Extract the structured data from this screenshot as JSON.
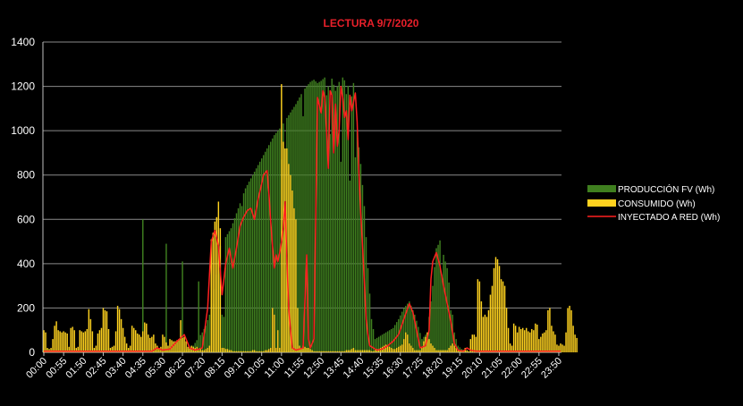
{
  "chart_data": {
    "type": "bar",
    "title": "LECTURA 9/7/2020",
    "xlabel": "",
    "ylabel": "",
    "ylim": [
      0,
      1400
    ],
    "yticks": [
      0,
      200,
      400,
      600,
      800,
      1000,
      1200,
      1400
    ],
    "grid": true,
    "legend_position": "right",
    "colors": {
      "background": "#000000",
      "title": "#e8202a",
      "grid": "#8a8a8a",
      "produccion": "#3f7f1f",
      "consumido": "#ffd21f",
      "inyectado": "#ff2020"
    },
    "interval_minutes": 5,
    "x_tick_labels": [
      "00:00",
      "00:55",
      "01:50",
      "02:45",
      "03:40",
      "04:35",
      "05:30",
      "06:25",
      "07:20",
      "08:15",
      "09:10",
      "10:05",
      "11:00",
      "11:55",
      "12:50",
      "13:45",
      "14:40",
      "15:35",
      "16:30",
      "17:25",
      "18:20",
      "19:15",
      "20:10",
      "21:05",
      "22:00",
      "22:55",
      "23:50"
    ],
    "series": [
      {
        "name": "PRODUCCIÓN FV (Wh)",
        "kind": "bar",
        "anchors": [
          [
            0,
            0
          ],
          [
            60,
            0
          ],
          [
            66,
            2
          ],
          [
            70,
            4
          ],
          [
            78,
            10
          ],
          [
            80,
            15
          ],
          [
            83,
            30
          ],
          [
            85,
            55
          ],
          [
            88,
            90
          ],
          [
            90,
            120
          ],
          [
            94,
            220
          ],
          [
            98,
            480
          ],
          [
            101,
            520
          ],
          [
            104,
            560
          ],
          [
            108,
            650
          ],
          [
            112,
            740
          ],
          [
            116,
            800
          ],
          [
            120,
            860
          ],
          [
            124,
            920
          ],
          [
            128,
            980
          ],
          [
            132,
            1020
          ],
          [
            136,
            1070
          ],
          [
            140,
            1120
          ],
          [
            142,
            1150
          ],
          [
            144,
            1180
          ],
          [
            146,
            1200
          ],
          [
            148,
            1220
          ],
          [
            150,
            1230
          ],
          [
            152,
            1215
          ],
          [
            154,
            1225
          ],
          [
            156,
            1240
          ],
          [
            158,
            1200
          ],
          [
            160,
            1235
          ],
          [
            162,
            1180
          ],
          [
            164,
            1220
          ],
          [
            166,
            1240
          ],
          [
            168,
            1215
          ],
          [
            170,
            1190
          ],
          [
            172,
            1120
          ],
          [
            174,
            1000
          ],
          [
            176,
            850
          ],
          [
            178,
            660
          ],
          [
            180,
            380
          ],
          [
            182,
            150
          ],
          [
            184,
            60
          ],
          [
            186,
            70
          ],
          [
            188,
            80
          ],
          [
            190,
            90
          ],
          [
            194,
            110
          ],
          [
            197,
            150
          ],
          [
            200,
            200
          ],
          [
            203,
            230
          ],
          [
            206,
            170
          ],
          [
            210,
            60
          ],
          [
            213,
            90
          ],
          [
            216,
            300
          ],
          [
            218,
            470
          ],
          [
            220,
            500
          ],
          [
            222,
            440
          ],
          [
            224,
            380
          ],
          [
            226,
            250
          ],
          [
            228,
            90
          ],
          [
            230,
            30
          ],
          [
            232,
            15
          ],
          [
            235,
            5
          ],
          [
            240,
            2
          ],
          [
            245,
            0
          ],
          [
            287,
            0
          ]
        ],
        "spikes": [
          [
            55,
            600
          ],
          [
            68,
            490
          ],
          [
            77,
            410
          ],
          [
            86,
            320
          ],
          [
            99,
            170
          ],
          [
            100,
            160
          ],
          [
            110,
            660
          ],
          [
            132,
            870
          ],
          [
            134,
            920
          ],
          [
            144,
            1065
          ],
          [
            157,
            1160
          ],
          [
            159,
            985
          ],
          [
            165,
            860
          ],
          [
            168,
            1165
          ],
          [
            170,
            775
          ],
          [
            172,
            1215
          ],
          [
            173,
            880
          ],
          [
            220,
            505
          ],
          [
            221,
            350
          ],
          [
            226,
            190
          ]
        ]
      },
      {
        "name": "CONSUMIDO (Wh)",
        "kind": "bar",
        "values": [
          100,
          90,
          20,
          15,
          20,
          60,
          120,
          140,
          100,
          95,
          90,
          95,
          90,
          85,
          25,
          110,
          115,
          100,
          20,
          25,
          100,
          95,
          90,
          95,
          105,
          195,
          150,
          95,
          20,
          30,
          85,
          100,
          110,
          200,
          190,
          185,
          105,
          20,
          25,
          30,
          95,
          210,
          195,
          150,
          110,
          70,
          40,
          20,
          30,
          120,
          110,
          100,
          85,
          80,
          70,
          95,
          135,
          130,
          80,
          65,
          70,
          80,
          40,
          30,
          20,
          25,
          80,
          70,
          45,
          30,
          60,
          55,
          50,
          50,
          55,
          60,
          145,
          65,
          70,
          50,
          25,
          20,
          30,
          25,
          20,
          25,
          10,
          15,
          10,
          10,
          15,
          20,
          30,
          510,
          540,
          590,
          610,
          680,
          560,
          20,
          20,
          15,
          15,
          10,
          10,
          5,
          5,
          5,
          5,
          5,
          5,
          5,
          5,
          5,
          5,
          5,
          10,
          10,
          5,
          5,
          5,
          5,
          5,
          10,
          10,
          15,
          20,
          200,
          170,
          20,
          100,
          20,
          1210,
          950,
          920,
          920,
          850,
          800,
          730,
          650,
          600,
          200,
          30,
          20,
          30,
          25,
          20,
          20,
          15,
          10,
          5,
          5,
          5,
          5,
          5,
          5,
          5,
          5,
          5,
          5,
          5,
          5,
          5,
          5,
          5,
          5,
          5,
          5,
          10,
          10,
          10,
          15,
          20,
          10,
          10,
          10,
          10,
          10,
          10,
          10,
          10,
          10,
          5,
          5,
          10,
          15,
          15,
          20,
          25,
          30,
          35,
          30,
          25,
          20,
          15,
          15,
          20,
          25,
          30,
          35,
          60,
          90,
          80,
          40,
          30,
          20,
          10,
          10,
          10,
          10,
          20,
          50,
          70,
          90,
          60,
          40,
          30,
          20,
          10,
          10,
          10,
          10,
          10,
          10,
          10,
          20,
          30,
          40,
          30,
          20,
          10,
          10,
          10,
          10,
          20,
          10,
          5,
          60,
          80,
          80,
          70,
          330,
          320,
          230,
          160,
          170,
          160,
          190,
          260,
          300,
          380,
          430,
          420,
          390,
          330,
          320,
          300,
          200,
          110,
          40,
          30,
          130,
          120,
          90,
          115,
          105,
          110,
          100,
          110,
          95,
          90,
          105,
          100,
          130,
          125,
          60,
          70,
          85,
          90,
          100,
          190,
          200,
          120,
          95,
          80,
          35,
          30,
          40,
          35,
          30,
          90,
          200,
          210,
          190,
          120,
          80,
          65
        ]
      },
      {
        "name": "INYECTADO A RED (Wh)",
        "kind": "line",
        "anchors": [
          [
            0,
            5
          ],
          [
            50,
            5
          ],
          [
            60,
            5
          ],
          [
            63,
            20
          ],
          [
            66,
            10
          ],
          [
            70,
            15
          ],
          [
            74,
            50
          ],
          [
            78,
            80
          ],
          [
            81,
            20
          ],
          [
            84,
            10
          ],
          [
            88,
            20
          ],
          [
            91,
            200
          ],
          [
            93,
            500
          ],
          [
            95,
            550
          ],
          [
            97,
            480
          ],
          [
            99,
            260
          ],
          [
            101,
            400
          ],
          [
            103,
            470
          ],
          [
            105,
            380
          ],
          [
            107,
            470
          ],
          [
            109,
            570
          ],
          [
            111,
            610
          ],
          [
            113,
            640
          ],
          [
            115,
            650
          ],
          [
            117,
            600
          ],
          [
            119,
            690
          ],
          [
            121,
            760
          ],
          [
            122,
            800
          ],
          [
            124,
            820
          ],
          [
            125,
            720
          ],
          [
            126,
            590
          ],
          [
            127,
            480
          ],
          [
            128,
            380
          ],
          [
            129,
            440
          ],
          [
            130,
            410
          ],
          [
            131,
            450
          ],
          [
            132,
            500
          ],
          [
            133,
            560
          ],
          [
            134,
            680
          ],
          [
            135,
            420
          ],
          [
            136,
            200
          ],
          [
            137,
            100
          ],
          [
            138,
            20
          ],
          [
            140,
            10
          ],
          [
            144,
            20
          ],
          [
            146,
            440
          ],
          [
            147,
            60
          ],
          [
            148,
            20
          ],
          [
            150,
            60
          ],
          [
            152,
            1150
          ],
          [
            154,
            1080
          ],
          [
            155,
            1180
          ],
          [
            156,
            1150
          ],
          [
            157,
            1000
          ],
          [
            158,
            830
          ],
          [
            159,
            1180
          ],
          [
            160,
            1160
          ],
          [
            161,
            900
          ],
          [
            162,
            1120
          ],
          [
            163,
            930
          ],
          [
            164,
            1000
          ],
          [
            165,
            1200
          ],
          [
            166,
            1150
          ],
          [
            167,
            1060
          ],
          [
            168,
            1090
          ],
          [
            169,
            960
          ],
          [
            170,
            1160
          ],
          [
            171,
            1090
          ],
          [
            172,
            1130
          ],
          [
            173,
            1170
          ],
          [
            174,
            1040
          ],
          [
            175,
            810
          ],
          [
            176,
            630
          ],
          [
            177,
            480
          ],
          [
            178,
            320
          ],
          [
            179,
            150
          ],
          [
            180,
            80
          ],
          [
            181,
            30
          ],
          [
            183,
            20
          ],
          [
            185,
            10
          ],
          [
            188,
            15
          ],
          [
            191,
            30
          ],
          [
            194,
            50
          ],
          [
            197,
            80
          ],
          [
            200,
            150
          ],
          [
            203,
            220
          ],
          [
            205,
            180
          ],
          [
            207,
            100
          ],
          [
            209,
            20
          ],
          [
            212,
            30
          ],
          [
            214,
            100
          ],
          [
            215,
            330
          ],
          [
            216,
            410
          ],
          [
            218,
            450
          ],
          [
            220,
            390
          ],
          [
            222,
            300
          ],
          [
            224,
            220
          ],
          [
            226,
            140
          ],
          [
            228,
            40
          ],
          [
            230,
            10
          ],
          [
            233,
            5
          ],
          [
            235,
            20
          ],
          [
            237,
            10
          ],
          [
            240,
            5
          ],
          [
            287,
            5
          ]
        ]
      }
    ]
  }
}
